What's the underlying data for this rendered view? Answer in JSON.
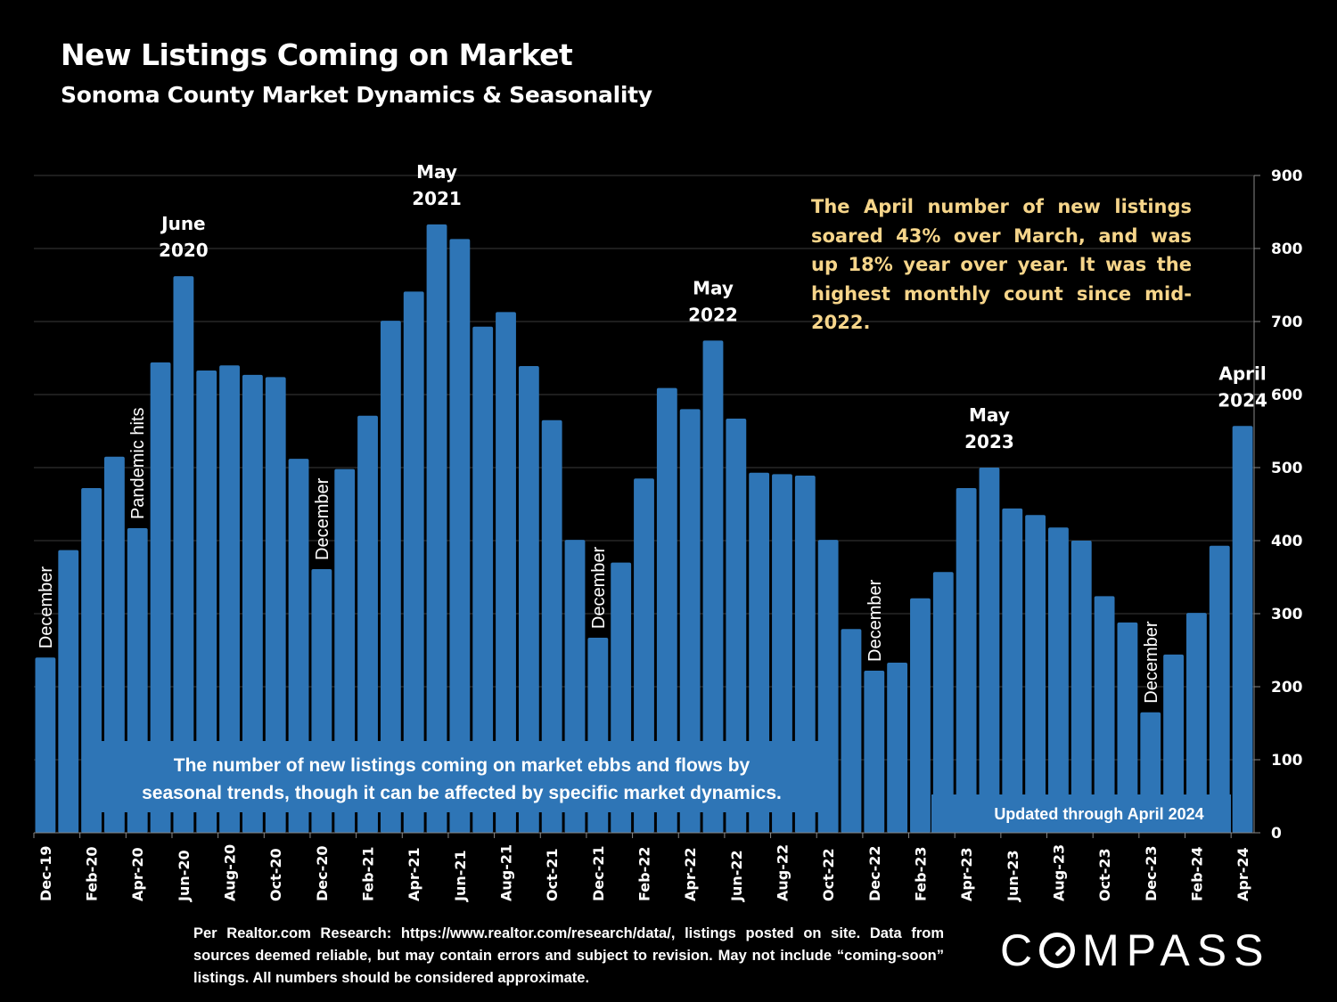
{
  "header": {
    "title": "New Listings Coming on Market",
    "subtitle": "Sonoma County Market Dynamics & Seasonality"
  },
  "colors": {
    "background": "#000000",
    "bar": "#2e75b6",
    "note_text": "#f6d58a",
    "text": "#ffffff"
  },
  "note": "The April number of new listings soared 43% over March, and was up 18% year over year. It was the highest monthly count since mid-2022.",
  "footer": "Per Realtor.com Research:  https://www.realtor.com/research/data/, listings posted on site. Data from sources deemed reliable, but may contain errors and subject to revision. May not include “coming-soon” listings. All numbers should be considered approximate.",
  "logo": {
    "before": "C",
    "after": "MPASS"
  },
  "chart_data": {
    "type": "bar",
    "title": "New Listings Coming on Market",
    "subtitle": "Sonoma County Market Dynamics & Seasonality",
    "xlabel": "",
    "ylabel": "",
    "ylim": [
      0,
      900
    ],
    "yticks": [
      0,
      100,
      200,
      300,
      400,
      500,
      600,
      700,
      800,
      900
    ],
    "yaxis_side": "right",
    "grid": true,
    "categories": [
      "Dec-19",
      "Jan-20",
      "Feb-20",
      "Mar-20",
      "Apr-20",
      "May-20",
      "Jun-20",
      "Jul-20",
      "Aug-20",
      "Sep-20",
      "Oct-20",
      "Nov-20",
      "Dec-20",
      "Jan-21",
      "Feb-21",
      "Mar-21",
      "Apr-21",
      "May-21",
      "Jun-21",
      "Jul-21",
      "Aug-21",
      "Sep-21",
      "Oct-21",
      "Nov-21",
      "Dec-21",
      "Jan-22",
      "Feb-22",
      "Mar-22",
      "Apr-22",
      "May-22",
      "Jun-22",
      "Jul-22",
      "Aug-22",
      "Sep-22",
      "Oct-22",
      "Nov-22",
      "Dec-22",
      "Jan-23",
      "Feb-23",
      "Mar-23",
      "Apr-23",
      "May-23",
      "Jun-23",
      "Jul-23",
      "Aug-23",
      "Sep-23",
      "Oct-23",
      "Nov-23",
      "Dec-23",
      "Jan-24",
      "Feb-24",
      "Mar-24",
      "Apr-24"
    ],
    "tick_labels": [
      "Dec-19",
      "",
      "Feb-20",
      "",
      "Apr-20",
      "",
      "Jun-20",
      "",
      "Aug-20",
      "",
      "Oct-20",
      "",
      "Dec-20",
      "",
      "Feb-21",
      "",
      "Apr-21",
      "",
      "Jun-21",
      "",
      "Aug-21",
      "",
      "Oct-21",
      "",
      "Dec-21",
      "",
      "Feb-22",
      "",
      "Apr-22",
      "",
      "Jun-22",
      "",
      "Aug-22",
      "",
      "Oct-22",
      "",
      "Dec-22",
      "",
      "Feb-23",
      "",
      "Apr-23",
      "",
      "Jun-23",
      "",
      "Aug-23",
      "",
      "Oct-23",
      "",
      "Dec-23",
      "",
      "Feb-24",
      "",
      "Apr-24"
    ],
    "values": [
      240,
      387,
      472,
      515,
      417,
      644,
      762,
      633,
      640,
      627,
      624,
      512,
      361,
      498,
      571,
      701,
      741,
      833,
      813,
      693,
      713,
      639,
      565,
      401,
      267,
      370,
      485,
      609,
      580,
      674,
      567,
      493,
      491,
      489,
      401,
      279,
      222,
      233,
      321,
      357,
      472,
      500,
      444,
      435,
      418,
      400,
      324,
      288,
      165,
      244,
      301,
      393,
      557
    ],
    "annotations": [
      {
        "index": 0,
        "text": "December",
        "style": "vertical"
      },
      {
        "index": 4,
        "text": "Pandemic hits",
        "style": "vertical"
      },
      {
        "index": 6,
        "text": "June\n2020",
        "style": "horizontal"
      },
      {
        "index": 12,
        "text": "December",
        "style": "vertical"
      },
      {
        "index": 17,
        "text": "May\n2021",
        "style": "horizontal"
      },
      {
        "index": 24,
        "text": "December",
        "style": "vertical"
      },
      {
        "index": 29,
        "text": "May\n2022",
        "style": "horizontal"
      },
      {
        "index": 36,
        "text": "December",
        "style": "vertical"
      },
      {
        "index": 41,
        "text": "May\n2023",
        "style": "horizontal"
      },
      {
        "index": 48,
        "text": "December",
        "style": "vertical"
      },
      {
        "index": 52,
        "text": "April\n2024",
        "style": "horizontal"
      }
    ],
    "overlay_boxes": [
      {
        "text": "The number of new listings coming on market ebbs and flows by seasonal trends, though it can be affected by specific market dynamics."
      },
      {
        "text": "Updated through April 2024"
      }
    ]
  }
}
